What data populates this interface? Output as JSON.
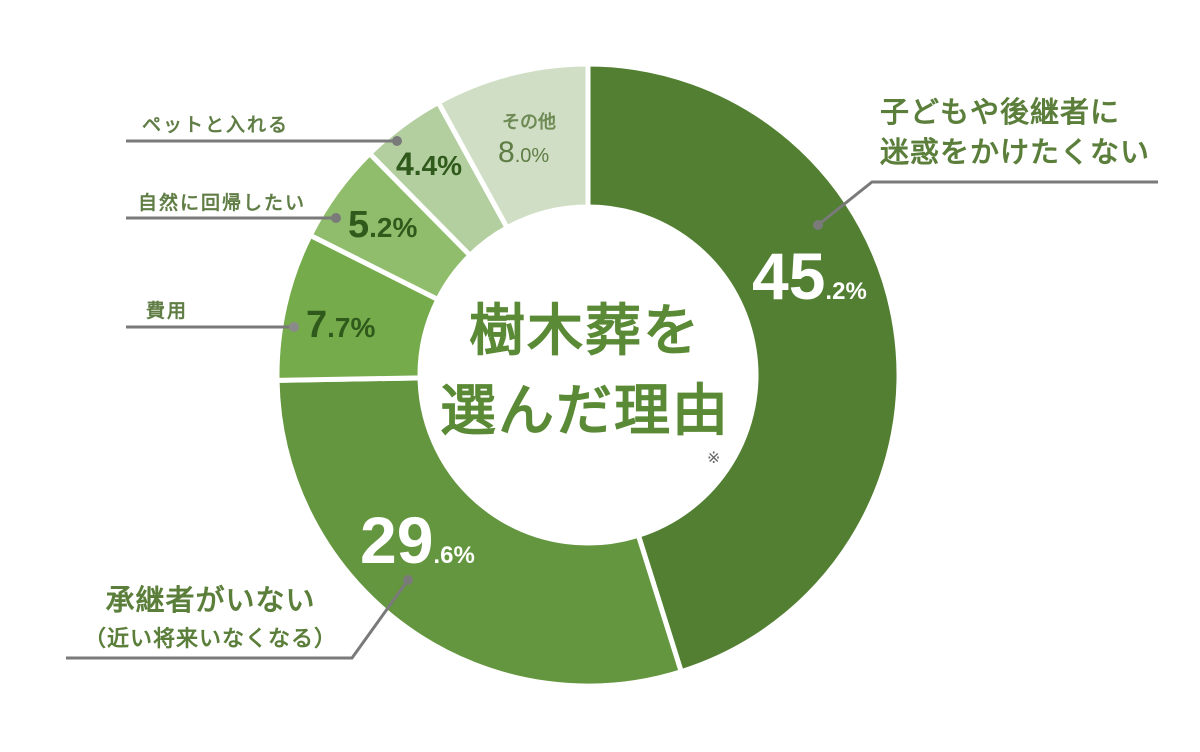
{
  "chart_data": {
    "type": "pie",
    "style": "donut",
    "title": "樹木葬を選んだ理由",
    "title_lines": [
      "樹木葬を",
      "選んだ理由"
    ],
    "note_mark": "※",
    "unit": "%",
    "categories": [
      "子どもや後継者に迷惑をかけたくない",
      "承継者がいない（近い将来いなくなる）",
      "費用",
      "自然に回帰したい",
      "ペットと入れる",
      "その他"
    ],
    "values": [
      45.2,
      29.6,
      7.7,
      5.2,
      4.4,
      8.0
    ],
    "colors": [
      "#527f32",
      "#64963f",
      "#76ab4c",
      "#8fbd6c",
      "#b3cfa0",
      "#cfdec4"
    ],
    "legend_position": "callout labels"
  },
  "labels": {
    "title_line1": "樹木葬を",
    "title_line2": "選んだ理由",
    "note": "※",
    "s0_line1": "子どもや後継者に",
    "s0_line2": "迷惑をかけたくない",
    "s0_int": "45",
    "s0_dec": ".2%",
    "s1_line1": "承継者がいない",
    "s1_line2": "（近い将来いなくなる）",
    "s1_int": "29",
    "s1_dec": ".6%",
    "s2_label": "費用",
    "s2_int": "7",
    "s2_dec": ".7%",
    "s3_label": "自然に回帰したい",
    "s3_int": "5",
    "s3_dec": ".2%",
    "s4_label": "ペットと入れる",
    "s4_int": "4",
    "s4_dec": ".4%",
    "s5_label": "その他",
    "s5_int": "8",
    "s5_dec": ".0%"
  }
}
